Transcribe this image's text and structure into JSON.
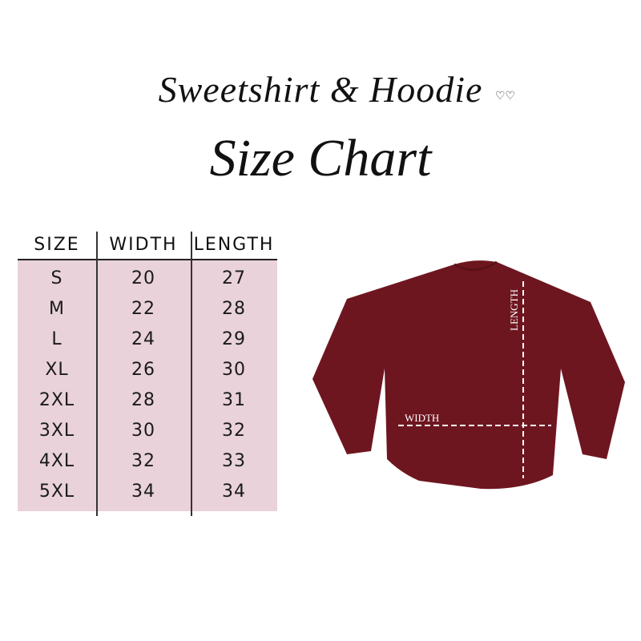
{
  "title": {
    "line1": "Sweetshirt & Hoodie",
    "line2": "Size Chart"
  },
  "table": {
    "headers": [
      "SIZE",
      "WIDTH",
      "LENGTH"
    ],
    "rows": [
      [
        "S",
        "20",
        "27"
      ],
      [
        "M",
        "22",
        "28"
      ],
      [
        "L",
        "24",
        "29"
      ],
      [
        "XL",
        "26",
        "30"
      ],
      [
        "2XL",
        "28",
        "31"
      ],
      [
        "3XL",
        "30",
        "32"
      ],
      [
        "4XL",
        "32",
        "33"
      ],
      [
        "5XL",
        "34",
        "34"
      ]
    ]
  },
  "diagram": {
    "width_label": "WIDTH",
    "length_label": "LENGTH",
    "garment_color": "#6e1620",
    "table_bg": "#e9d2da"
  }
}
